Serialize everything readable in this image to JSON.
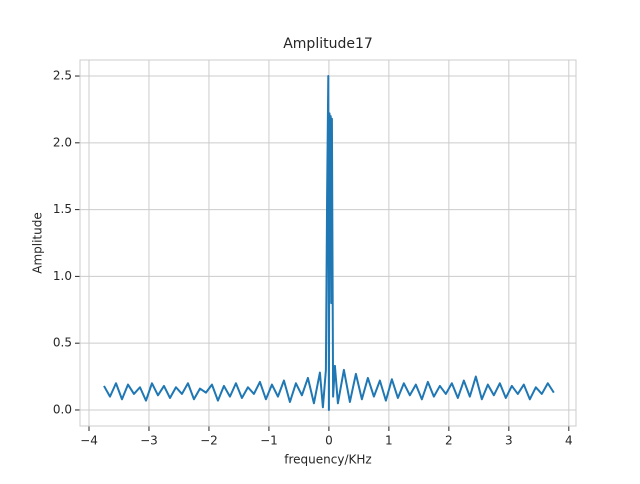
{
  "chart_data": {
    "type": "line",
    "title": "Amplitude17",
    "xlabel": "frequency/KHz",
    "ylabel": "Amplitude",
    "x": [
      -3.75,
      -3.65,
      -3.55,
      -3.45,
      -3.35,
      -3.25,
      -3.15,
      -3.05,
      -2.95,
      -2.85,
      -2.75,
      -2.65,
      -2.55,
      -2.45,
      -2.35,
      -2.25,
      -2.15,
      -2.05,
      -1.95,
      -1.85,
      -1.75,
      -1.65,
      -1.55,
      -1.45,
      -1.35,
      -1.25,
      -1.15,
      -1.05,
      -0.95,
      -0.85,
      -0.75,
      -0.65,
      -0.55,
      -0.45,
      -0.35,
      -0.25,
      -0.15,
      -0.1,
      -0.05,
      -0.03,
      -0.01,
      0,
      0.01,
      0.02,
      0.03,
      0.04,
      0.05,
      0.07,
      0.1,
      0.15,
      0.25,
      0.35,
      0.45,
      0.55,
      0.65,
      0.75,
      0.85,
      0.95,
      1.05,
      1.15,
      1.25,
      1.35,
      1.45,
      1.55,
      1.65,
      1.75,
      1.85,
      1.95,
      2.05,
      2.15,
      2.25,
      2.35,
      2.45,
      2.55,
      2.65,
      2.75,
      2.85,
      2.95,
      3.05,
      3.15,
      3.25,
      3.35,
      3.45,
      3.55,
      3.65,
      3.75
    ],
    "series": [
      {
        "color": "#1f77b4",
        "values": [
          0.18,
          0.1,
          0.2,
          0.08,
          0.19,
          0.12,
          0.17,
          0.07,
          0.2,
          0.11,
          0.18,
          0.09,
          0.17,
          0.12,
          0.2,
          0.08,
          0.16,
          0.13,
          0.19,
          0.07,
          0.18,
          0.1,
          0.2,
          0.09,
          0.17,
          0.12,
          0.21,
          0.08,
          0.19,
          0.1,
          0.22,
          0.06,
          0.2,
          0.11,
          0.24,
          0.05,
          0.28,
          0.02,
          0.3,
          1.6,
          2.5,
          0.0,
          2.22,
          1.2,
          2.2,
          0.8,
          2.18,
          0.1,
          0.33,
          0.05,
          0.3,
          0.06,
          0.27,
          0.08,
          0.24,
          0.1,
          0.22,
          0.07,
          0.23,
          0.09,
          0.2,
          0.11,
          0.19,
          0.08,
          0.21,
          0.1,
          0.18,
          0.12,
          0.2,
          0.09,
          0.22,
          0.1,
          0.25,
          0.08,
          0.19,
          0.11,
          0.2,
          0.09,
          0.18,
          0.12,
          0.19,
          0.08,
          0.17,
          0.12,
          0.2,
          0.13
        ]
      }
    ],
    "xlim": [
      -4.15,
      4.12
    ],
    "ylim": [
      -0.12,
      2.62
    ],
    "xticks": [
      {
        "value": -4,
        "label": "−4"
      },
      {
        "value": -3,
        "label": "−3"
      },
      {
        "value": -2,
        "label": "−2"
      },
      {
        "value": -1,
        "label": "−1"
      },
      0,
      1,
      2,
      3,
      4
    ],
    "yticks": [
      {
        "value": 0,
        "label": "0.0"
      },
      0.5,
      {
        "value": 1,
        "label": "1.0"
      },
      1.5,
      {
        "value": 2,
        "label": "2.0"
      },
      2.5
    ],
    "grid": true
  }
}
